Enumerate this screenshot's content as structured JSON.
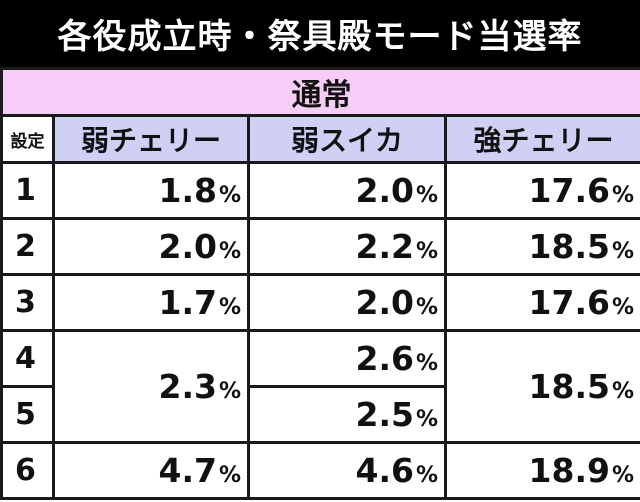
{
  "title": "各役成立時・祭具殿モード当選率",
  "mode": "通常",
  "headers": {
    "setting": "設定",
    "weak_cherry": "弱チェリー",
    "weak_watermelon": "弱スイカ",
    "strong_cherry": "強チェリー"
  },
  "unit": "%",
  "rows": [
    {
      "setting": "1",
      "weak_cherry": "1.8",
      "weak_watermelon": "2.0",
      "strong_cherry": "17.6"
    },
    {
      "setting": "2",
      "weak_cherry": "2.0",
      "weak_watermelon": "2.2",
      "strong_cherry": "18.5"
    },
    {
      "setting": "3",
      "weak_cherry": "1.7",
      "weak_watermelon": "2.0",
      "strong_cherry": "17.6"
    },
    {
      "setting": "4",
      "weak_cherry": "2.3",
      "weak_watermelon": "2.6",
      "strong_cherry": "18.5"
    },
    {
      "setting": "5",
      "weak_watermelon": "2.5"
    },
    {
      "setting": "6",
      "weak_cherry": "4.7",
      "weak_watermelon": "4.6",
      "strong_cherry": "18.9"
    }
  ]
}
